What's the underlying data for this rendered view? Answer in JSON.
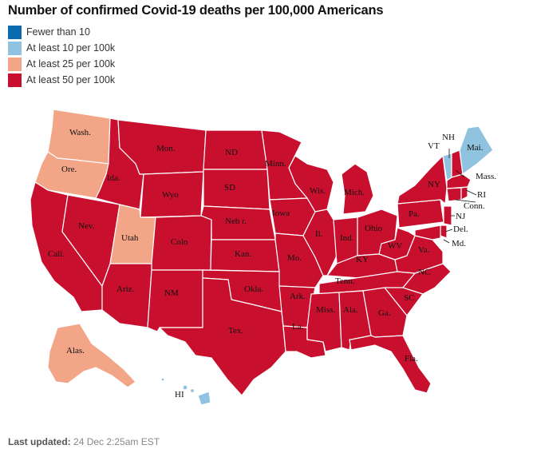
{
  "title": "Number of confirmed Covid-19 deaths per 100,000 Americans",
  "legend": [
    {
      "label": "Fewer than 10",
      "color": "#0a6ab0"
    },
    {
      "label": "At least 10 per 100k",
      "color": "#90c3e0"
    },
    {
      "label": "At least 25 per 100k",
      "color": "#f2a687"
    },
    {
      "label": "At least 50 per 100k",
      "color": "#c8102e"
    }
  ],
  "footer": {
    "prefix": "Last updated:",
    "value": "24 Dec 2:25am EST"
  },
  "states": {
    "wash": {
      "label": "Wash.",
      "category": 2
    },
    "ore": {
      "label": "Ore.",
      "category": 2
    },
    "cali": {
      "label": "Cali.",
      "category": 3
    },
    "nev": {
      "label": "Nev.",
      "category": 3
    },
    "ida": {
      "label": "Ida.",
      "category": 3
    },
    "mon": {
      "label": "Mon.",
      "category": 3
    },
    "wyo": {
      "label": "Wyo",
      "category": 3
    },
    "utah": {
      "label": "Utah",
      "category": 2
    },
    "colo": {
      "label": "Colo",
      "category": 3
    },
    "ariz": {
      "label": "Ariz.",
      "category": 3
    },
    "nm": {
      "label": "NM",
      "category": 3
    },
    "nd": {
      "label": "ND",
      "category": 3
    },
    "sd": {
      "label": "SD",
      "category": 3
    },
    "nebr": {
      "label": "Neb r.",
      "category": 3
    },
    "kan": {
      "label": "Kan.",
      "category": 3
    },
    "okla": {
      "label": "Okla.",
      "category": 3
    },
    "tex": {
      "label": "Tex.",
      "category": 3
    },
    "minn": {
      "label": "Minn.",
      "category": 3
    },
    "iowa": {
      "label": "Iowa",
      "category": 3
    },
    "mo": {
      "label": "Mo.",
      "category": 3
    },
    "ark": {
      "label": "Ark.",
      "category": 3
    },
    "la": {
      "label": "La.",
      "category": 3
    },
    "wis": {
      "label": "Wis.",
      "category": 3
    },
    "il": {
      "label": "Il.",
      "category": 3
    },
    "mich": {
      "label": "Mich.",
      "category": 3
    },
    "ind": {
      "label": "Ind.",
      "category": 3
    },
    "ohio": {
      "label": "Ohio",
      "category": 3
    },
    "ky": {
      "label": "KY",
      "category": 3
    },
    "tenn": {
      "label": "Tenn.",
      "category": 3
    },
    "miss": {
      "label": "Miss.",
      "category": 3
    },
    "ala": {
      "label": "Ala.",
      "category": 3
    },
    "ga": {
      "label": "Ga.",
      "category": 3
    },
    "fla": {
      "label": "Fla.",
      "category": 3
    },
    "sc": {
      "label": "SC",
      "category": 3
    },
    "nc": {
      "label": "NC",
      "category": 3
    },
    "va": {
      "label": "Va.",
      "category": 3
    },
    "wv": {
      "label": "WV",
      "category": 3
    },
    "pa": {
      "label": "Pa.",
      "category": 3
    },
    "ny": {
      "label": "NY",
      "category": 3
    },
    "vt": {
      "label": "VT",
      "category": 1
    },
    "nh": {
      "label": "NH",
      "category": 3
    },
    "mai": {
      "label": "Mai.",
      "category": 1
    },
    "mass": {
      "label": "Mass.",
      "category": 3
    },
    "ri": {
      "label": "RI",
      "category": 3
    },
    "conn": {
      "label": "Conn.",
      "category": 3
    },
    "nj": {
      "label": "NJ",
      "category": 3
    },
    "del": {
      "label": "Del.",
      "category": 3
    },
    "md": {
      "label": "Md.",
      "category": 3
    },
    "alas": {
      "label": "Alas.",
      "category": 2
    },
    "hi": {
      "label": "HI",
      "category": 1
    }
  }
}
